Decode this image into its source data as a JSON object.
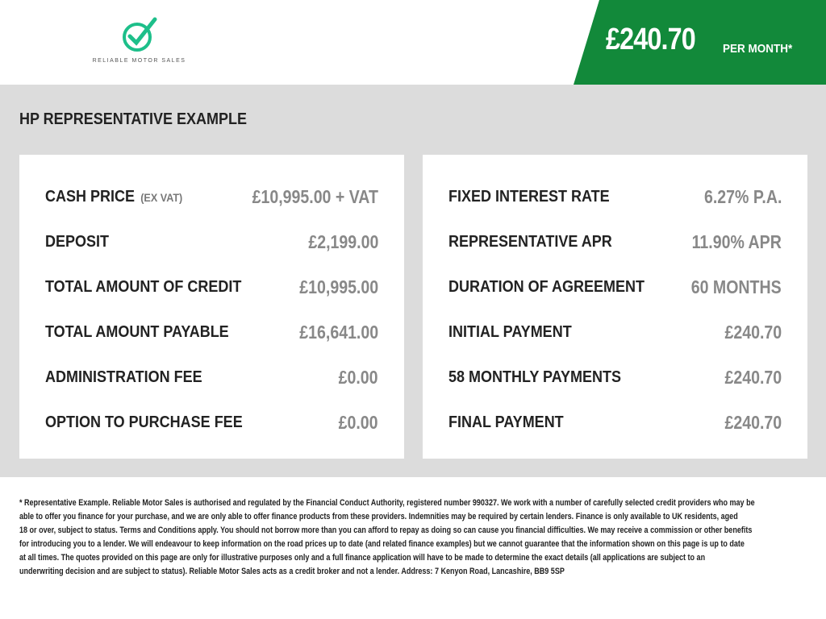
{
  "brand": {
    "name": "RELIABLE MOTOR SALES",
    "accent": "#12893a",
    "logo_color": "#1dbf8a"
  },
  "banner": {
    "price": "£240.70",
    "suffix": "PER MONTH*"
  },
  "section_title": "HP REPRESENTATIVE EXAMPLE",
  "left": [
    {
      "label": "CASH PRICE",
      "note": "(EX VAT)",
      "value": "£10,995.00 + VAT"
    },
    {
      "label": "DEPOSIT",
      "value": "£2,199.00"
    },
    {
      "label": "TOTAL AMOUNT OF CREDIT",
      "value": "£10,995.00"
    },
    {
      "label": "TOTAL AMOUNT PAYABLE",
      "value": "£16,641.00"
    },
    {
      "label": "ADMINISTRATION FEE",
      "value": "£0.00"
    },
    {
      "label": "OPTION TO PURCHASE FEE",
      "value": "£0.00"
    }
  ],
  "right": [
    {
      "label": "FIXED INTEREST RATE",
      "value": "6.27% P.A."
    },
    {
      "label": "REPRESENTATIVE APR",
      "value": "11.90% APR"
    },
    {
      "label": "DURATION OF AGREEMENT",
      "value": "60 MONTHS"
    },
    {
      "label": "INITIAL PAYMENT",
      "value": "£240.70"
    },
    {
      "label": "58 MONTHLY PAYMENTS",
      "value": "£240.70"
    },
    {
      "label": "FINAL PAYMENT",
      "value": "£240.70"
    }
  ],
  "disclaimer": [
    "* Representative Example. Reliable Motor Sales is authorised and regulated by the Financial Conduct Authority, registered number 990327. We work with a number of carefully selected credit providers who may be",
    "able to offer you finance for your purchase, and we are only able to offer finance products from these providers. Indemnities may be required by certain lenders. Finance is only available to UK residents, aged",
    "18 or over, subject to status. Terms and Conditions apply. You should not borrow more than you can afford to repay as doing so can cause you financial difficulties. We may receive a commission or other benefits",
    "for introducing you to a lender. We will endeavour to keep information on the road prices up to date (and related finance examples) but we cannot guarantee that the information shown on this page is up to date",
    "at all times. The quotes provided on this page are only for illustrative purposes only and a full finance application will have to be made to determine the exact details (all applications are subject to an",
    "underwriting decision and are subject to status). Reliable Motor Sales acts as a credit broker and not a lender. Address: 7 Kenyon Road, Lancashire, BB9 5SP"
  ]
}
